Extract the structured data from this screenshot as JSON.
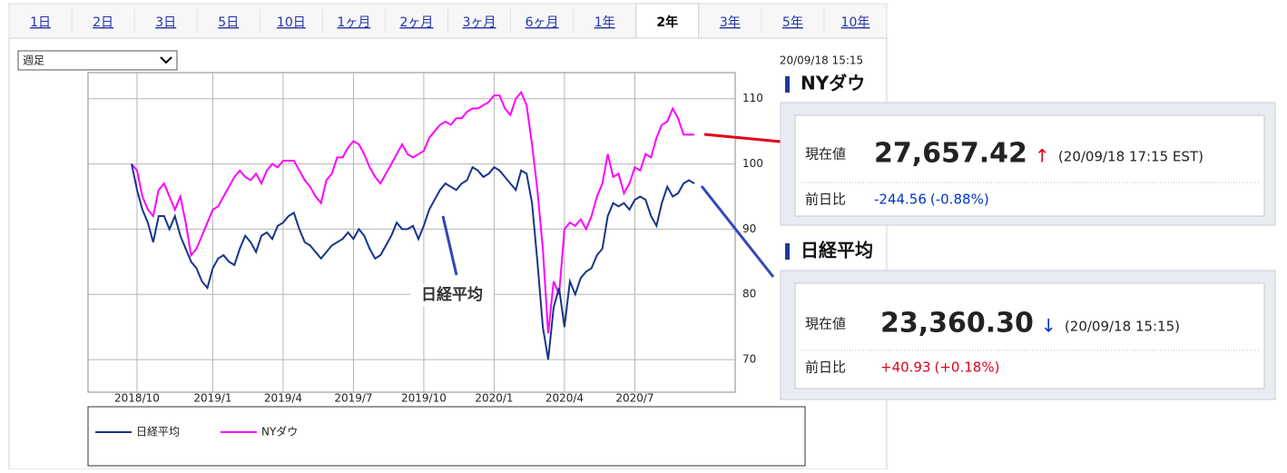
{
  "tabs": [
    {
      "label": "1日"
    },
    {
      "label": "2日"
    },
    {
      "label": "3日"
    },
    {
      "label": "5日"
    },
    {
      "label": "10日"
    },
    {
      "label": "1ヶ月"
    },
    {
      "label": "2ヶ月"
    },
    {
      "label": "3ヶ月"
    },
    {
      "label": "6ヶ月"
    },
    {
      "label": "1年"
    },
    {
      "label": "2年",
      "active": true
    },
    {
      "label": "3年"
    },
    {
      "label": "5年"
    },
    {
      "label": "10年"
    }
  ],
  "period_select": "週足",
  "timestamp": "20/09/18 15:15",
  "chart_data": {
    "type": "line",
    "categories": [
      null,
      "2018/10",
      null,
      null,
      null,
      null,
      null,
      null,
      null,
      null,
      null,
      null,
      null,
      null,
      null,
      "2019/1",
      null,
      null,
      null,
      null,
      null,
      null,
      null,
      null,
      null,
      null,
      null,
      null,
      "2019/4",
      null,
      null,
      null,
      null,
      null,
      null,
      null,
      null,
      null,
      null,
      null,
      null,
      "2019/7",
      null,
      null,
      null,
      null,
      null,
      null,
      null,
      null,
      null,
      null,
      null,
      null,
      "2019/10",
      null,
      null,
      null,
      null,
      null,
      null,
      null,
      null,
      null,
      null,
      null,
      null,
      "2020/1",
      null,
      null,
      null,
      null,
      null,
      null,
      null,
      null,
      null,
      null,
      null,
      null,
      "2020/4",
      null,
      null,
      null,
      null,
      null,
      null,
      null,
      null,
      null,
      null,
      null,
      null,
      "2020/7",
      null,
      null,
      null,
      null,
      null,
      null,
      null,
      null,
      null,
      null,
      null
    ],
    "series": [
      {
        "name": "日経平均",
        "color": "#17358a",
        "values": [
          100,
          96,
          93,
          91,
          88,
          92,
          92,
          90,
          92,
          89,
          87,
          85,
          84,
          82,
          81,
          84,
          85.5,
          86,
          85,
          84.5,
          87,
          89,
          88,
          86.5,
          89,
          89.5,
          88.5,
          90.5,
          91,
          92,
          92.5,
          90,
          88,
          87.5,
          86.5,
          85.5,
          86.5,
          87.5,
          88,
          88.5,
          89.5,
          88.5,
          90,
          89,
          87,
          85.5,
          86,
          87.5,
          89,
          91,
          90,
          90,
          90.5,
          88.5,
          90.5,
          93,
          94.5,
          96,
          97,
          96.5,
          96,
          97,
          97.5,
          99.5,
          99,
          98,
          98.5,
          99.5,
          99,
          98,
          97,
          96,
          99,
          98.5,
          94,
          85,
          75,
          70,
          78,
          81,
          75,
          82,
          80,
          82.5,
          83.5,
          84,
          86,
          87,
          92,
          94,
          93.5,
          94,
          93,
          94.5,
          95,
          94.5,
          92,
          90.5,
          94,
          96.5,
          95,
          95.5,
          97,
          97.5,
          97
        ]
      },
      {
        "name": "NYダウ",
        "color": "#ff00ff",
        "values": [
          100,
          99,
          95,
          93,
          92,
          96,
          97,
          95,
          93,
          95,
          91,
          86,
          87,
          89,
          91,
          93,
          93.5,
          95,
          96.5,
          98,
          99,
          98,
          97.5,
          98.5,
          97,
          99,
          100,
          99.5,
          100.5,
          100.5,
          100.5,
          99,
          97.5,
          96.5,
          95,
          94,
          97.5,
          98.5,
          101,
          101,
          102.5,
          103.5,
          103,
          101.5,
          99.5,
          98,
          97,
          98.5,
          100,
          101.5,
          103,
          101.5,
          101,
          101.5,
          102,
          104,
          105,
          106,
          106.5,
          106,
          107,
          107,
          108,
          108.5,
          108.5,
          109,
          109.5,
          110.5,
          110.5,
          108.5,
          107.5,
          110,
          111,
          109,
          103,
          96,
          87,
          74,
          82,
          80,
          90,
          91,
          90.5,
          91.5,
          90,
          92,
          95,
          97,
          101.5,
          98,
          98.5,
          95.5,
          97,
          99.5,
          99,
          101.5,
          101,
          104,
          106,
          106.5,
          108.5,
          107,
          104.5,
          104.5,
          104.5
        ]
      }
    ],
    "ylim": [
      65,
      114
    ],
    "yticks": [
      70,
      80,
      90,
      100,
      110
    ],
    "grid": true,
    "annotation": "日経平均",
    "legend": "bottom"
  },
  "quotes": [
    {
      "name": "NYダウ",
      "current_label": "現在値",
      "price": "27,657.42",
      "arrow": "↑",
      "arrow_color": "#e0001a",
      "time": "(20/09/18 17:15 EST)",
      "change_label": "前日比",
      "change": "-244.56",
      "change_pct": "(-0.88%)",
      "change_color": "#0033cc"
    },
    {
      "name": "日経平均",
      "current_label": "現在値",
      "price": "23,360.30",
      "arrow": "↓",
      "arrow_color": "#0033cc",
      "time": "(20/09/18 15:15)",
      "change_label": "前日比",
      "change": "+40.93",
      "change_pct": "(+0.18%)",
      "change_color": "#e0001a"
    }
  ]
}
